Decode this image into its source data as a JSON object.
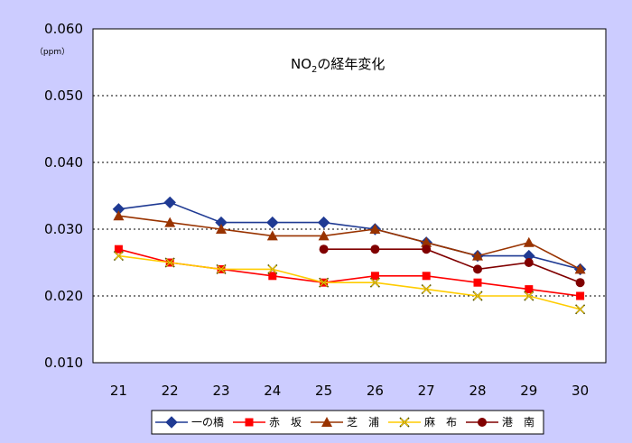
{
  "chart_data": {
    "type": "line",
    "title": {
      "prefix": "NO",
      "subscript": "2",
      "suffix": "の経年変化"
    },
    "unit": "（ppm）",
    "x": [
      "21",
      "22",
      "23",
      "24",
      "25",
      "26",
      "27",
      "28",
      "29",
      "30"
    ],
    "ylim": [
      0.01,
      0.06
    ],
    "yticks": [
      "0.010",
      "0.020",
      "0.030",
      "0.040",
      "0.050",
      "0.060"
    ],
    "grid": true,
    "legend_placement": "bottom",
    "series": [
      {
        "name": "一の橋",
        "color": "#1f3a93",
        "marker": "diamond",
        "values": [
          0.033,
          0.034,
          0.031,
          0.031,
          0.031,
          0.03,
          0.028,
          0.026,
          0.026,
          0.024
        ]
      },
      {
        "name": "赤　坂",
        "color": "#ff0000",
        "marker": "square",
        "values": [
          0.027,
          0.025,
          0.024,
          0.023,
          0.022,
          0.023,
          0.023,
          0.022,
          0.021,
          0.02
        ]
      },
      {
        "name": "芝　浦",
        "color": "#993300",
        "marker": "triangle",
        "values": [
          0.032,
          0.031,
          0.03,
          0.029,
          0.029,
          0.03,
          0.028,
          0.026,
          0.028,
          0.024
        ]
      },
      {
        "name": "麻　布",
        "color": "#ffcc00",
        "marker": "x",
        "values": [
          0.026,
          0.025,
          0.024,
          0.024,
          0.022,
          0.022,
          0.021,
          0.02,
          0.02,
          0.018
        ]
      },
      {
        "name": "港　南",
        "color": "#800000",
        "marker": "circle",
        "values": [
          null,
          null,
          null,
          null,
          0.027,
          0.027,
          0.027,
          0.024,
          0.025,
          0.022
        ]
      }
    ]
  }
}
